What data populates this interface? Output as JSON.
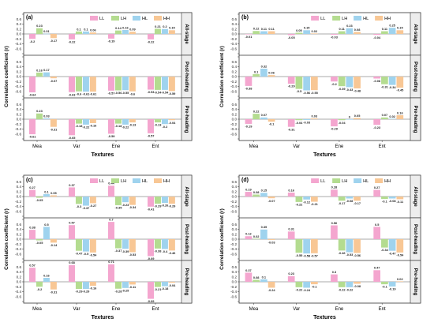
{
  "figure": {
    "ylabel": "Correlation coefficient (r)",
    "xlabel": "Textures",
    "categories": [
      "Mea",
      "Var",
      "Ene",
      "Ent"
    ],
    "legend": [
      "LL",
      "LH",
      "HL",
      "HH"
    ],
    "colors": {
      "LL": "#f4a6cf",
      "LH": "#b4dc90",
      "HL": "#9fd3ee",
      "HH": "#f8c795"
    },
    "rows": [
      "All-stage",
      "Post-heading",
      "Pre-heading"
    ],
    "yticks": [
      "0.8",
      "0.6",
      "0.4",
      "0.2",
      "0.0",
      "-0.2",
      "-0.4",
      "-0.6",
      "-0.8"
    ]
  },
  "chart_data": [
    {
      "type": "bar",
      "panel_label": "(a)",
      "categories": [
        "Mea",
        "Var",
        "Ene",
        "Ent"
      ],
      "ylim": [
        -0.8,
        0.8
      ],
      "rows": [
        {
          "name": "All-stage",
          "series": [
            {
              "name": "LL",
              "values": [
                -0.2,
                -0.22,
                -0.19,
                -0.22
              ]
            },
            {
              "name": "LH",
              "values": [
                0.23,
                0.1,
                0.14,
                0.21
              ]
            },
            {
              "name": "HL",
              "values": [
                0.01,
                0.1,
                0.16,
                0.2
              ]
            },
            {
              "name": "HH",
              "values": [
                -0.17,
                0.06,
                0.09,
                0.15
              ]
            }
          ]
        },
        {
          "name": "Post-heading",
          "series": [
            {
              "name": "LL",
              "values": [
                -0.64,
                -0.63,
                -0.57,
                -0.53
              ]
            },
            {
              "name": "LH",
              "values": [
                0.16,
                -0.6,
                -0.56,
                -0.54
              ]
            },
            {
              "name": "HL",
              "values": [
                0.17,
                -0.61,
                -0.55,
                -0.54
              ]
            },
            {
              "name": "HH",
              "values": [
                -0.07,
                -0.61,
                -0.6,
                -0.59
              ]
            }
          ]
        },
        {
          "name": "Pre-heading",
          "series": [
            {
              "name": "LL",
              "values": [
                -0.61,
                -0.65,
                -0.59,
                -0.57
              ]
            },
            {
              "name": "LH",
              "values": [
                0.23,
                -0.18,
                -0.18,
                -0.13
              ]
            },
            {
              "name": "HL",
              "values": [
                0.03,
                -0.22,
                -0.22,
                -0.2
              ]
            },
            {
              "name": "HH",
              "values": [
                -0.31,
                -0.16,
                -0.13,
                -0.04
              ]
            }
          ]
        }
      ]
    },
    {
      "type": "bar",
      "panel_label": "(b)",
      "categories": [
        "Mea",
        "Var",
        "Ene",
        "Ent"
      ],
      "ylim": [
        -0.8,
        0.8
      ],
      "rows": [
        {
          "name": "All-stage",
          "series": [
            {
              "name": "LL",
              "values": [
                -0.01,
                -0.05,
                -0.03,
                -0.04
              ]
            },
            {
              "name": "LH",
              "values": [
                0.12,
                0.05,
                0.11,
                0.11
              ]
            },
            {
              "name": "HL",
              "values": [
                0.11,
                0.15,
                0.23,
                0.25
              ]
            },
            {
              "name": "HH",
              "values": [
                0.11,
                0.02,
                0.08,
                0.15
              ]
            }
          ]
        },
        {
          "name": "Post-heading",
          "series": [
            {
              "name": "LL",
              "values": [
                -0.38,
                -0.29,
                -0.2,
                -0.08
              ]
            },
            {
              "name": "LH",
              "values": [
                0.1,
                -0.5,
                -0.39,
                -0.31
              ]
            },
            {
              "name": "HL",
              "values": [
                0.32,
                -0.56,
                -0.43,
                -0.34
              ]
            },
            {
              "name": "HH",
              "values": [
                0.06,
                -0.55,
                -0.48,
                -0.45
              ]
            }
          ]
        },
        {
          "name": "Pre-heading",
          "series": [
            {
              "name": "LL",
              "values": [
                -0.19,
                -0.31,
                -0.29,
                -0.23
              ]
            },
            {
              "name": "LH",
              "values": [
                0.22,
                -0.04,
                -0.04,
                0.07
              ]
            },
            {
              "name": "HL",
              "values": [
                0.07,
                -0.03,
                0,
                0.02
              ]
            },
            {
              "name": "HH",
              "values": [
                -0.1,
                0.03,
                0.05,
                0.16
              ]
            }
          ]
        }
      ]
    },
    {
      "type": "bar",
      "panel_label": "(c)",
      "categories": [
        "Mea",
        "Var",
        "Ene",
        "Ent"
      ],
      "ylim": [
        -0.8,
        0.8
      ],
      "rows": [
        {
          "name": "All-stage",
          "series": [
            {
              "name": "LL",
              "values": [
                0.27,
                0.37,
                0.44,
                -0.41
              ]
            },
            {
              "name": "LH",
              "values": [
                -0.05,
                -0.3,
                -0.35,
                -0.29
              ]
            },
            {
              "name": "HL",
              "values": [
                0.1,
                -0.37,
                -0.23,
                -0.26
              ]
            },
            {
              "name": "HH",
              "values": [
                0.05,
                -0.27,
                -0.34,
                -0.29
              ]
            }
          ]
        },
        {
          "name": "Post-heading",
          "series": [
            {
              "name": "LL",
              "values": [
                0.38,
                0.57,
                0.7,
                -0.69
              ]
            },
            {
              "name": "LH",
              "values": [
                -0.05,
                -0.47,
                -0.37,
                -0.38
              ]
            },
            {
              "name": "HL",
              "values": [
                0.5,
                -0.5,
                -0.39,
                -0.4
              ]
            },
            {
              "name": "HH",
              "values": [
                -0.14,
                -0.54,
                -0.53,
                -0.46
              ]
            }
          ]
        },
        {
          "name": "Pre-heading",
          "series": [
            {
              "name": "LL",
              "values": [
                0.57,
                0.68,
                0.71,
                -0.69
              ]
            },
            {
              "name": "LH",
              "values": [
                -0.2,
                -0.29,
                -0.28,
                -0.21
              ]
            },
            {
              "name": "HL",
              "values": [
                0.16,
                -0.29,
                -0.25,
                -0.18
              ]
            },
            {
              "name": "HH",
              "values": [
                -0.31,
                -0.16,
                -0.11,
                -0.04
              ]
            }
          ]
        }
      ]
    },
    {
      "type": "bar",
      "panel_label": "(d)",
      "categories": [
        "Mea",
        "Var",
        "Ene",
        "Ent"
      ],
      "ylim": [
        -0.8,
        0.8
      ],
      "rows": [
        {
          "name": "All-stage",
          "series": [
            {
              "name": "LL",
              "values": [
                0.19,
                0.16,
                0.28,
                0.27
              ]
            },
            {
              "name": "LH",
              "values": [
                0.08,
                -0.22,
                -0.17,
                -0.1
              ]
            },
            {
              "name": "HL",
              "values": [
                0.15,
                -0.12,
                -0.08,
                -0.08
              ]
            },
            {
              "name": "HH",
              "values": [
                -0.07,
                -0.21,
                -0.17,
                -0.11
              ]
            }
          ]
        },
        {
          "name": "Post-heading",
          "series": [
            {
              "name": "LL",
              "values": [
                0.12,
                0.31,
                0.56,
                0.5
              ]
            },
            {
              "name": "LH",
              "values": [
                0.02,
                -0.55,
                -0.46,
                -0.34
              ]
            },
            {
              "name": "HL",
              "values": [
                0.39,
                -0.58,
                -0.53,
                -0.47
              ]
            },
            {
              "name": "HH",
              "values": [
                -0.03,
                -0.57,
                -0.56,
                -0.54
              ]
            }
          ]
        },
        {
          "name": "Pre-heading",
          "series": [
            {
              "name": "LL",
              "values": [
                0.37,
                0.23,
                0.3,
                0.47
              ]
            },
            {
              "name": "LH",
              "values": [
                0.08,
                -0.22,
                -0.22,
                -0.1
              ]
            },
            {
              "name": "HL",
              "values": [
                0.1,
                -0.24,
                -0.22,
                -0.19
              ]
            },
            {
              "name": "HH",
              "values": [
                -0.24,
                -0.1,
                -0.08,
                0.02
              ]
            }
          ]
        }
      ]
    }
  ]
}
